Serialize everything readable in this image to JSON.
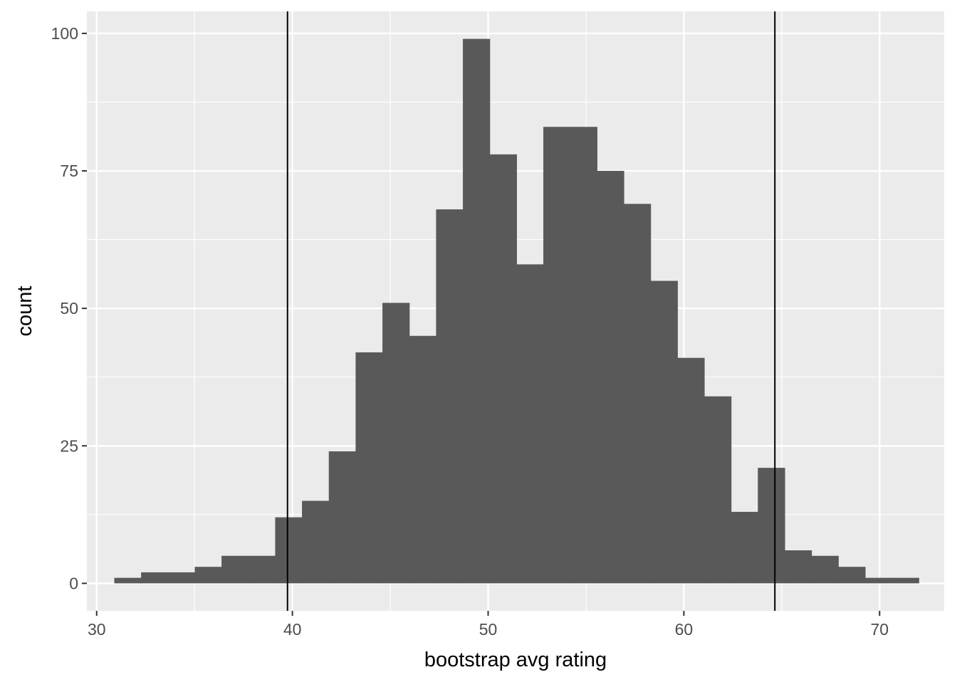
{
  "chart_data": {
    "type": "bar",
    "subtype": "histogram",
    "title": "",
    "xlabel": "bootstrap avg rating",
    "ylabel": "count",
    "xlim": [
      29.5,
      73.3
    ],
    "ylim": [
      -5,
      104
    ],
    "x_ticks": [
      30,
      40,
      50,
      60,
      70
    ],
    "x_tick_labels": [
      "30",
      "40",
      "50",
      "60",
      "70"
    ],
    "y_ticks": [
      0,
      25,
      50,
      75,
      100
    ],
    "y_tick_labels": [
      "0",
      "25",
      "50",
      "75",
      "100"
    ],
    "bins": [
      {
        "x0": 30.9,
        "x1": 32.27,
        "count": 1
      },
      {
        "x0": 32.27,
        "x1": 33.64,
        "count": 2
      },
      {
        "x0": 33.64,
        "x1": 35.01,
        "count": 2
      },
      {
        "x0": 35.01,
        "x1": 36.38,
        "count": 3
      },
      {
        "x0": 36.38,
        "x1": 37.75,
        "count": 5
      },
      {
        "x0": 37.75,
        "x1": 39.12,
        "count": 5
      },
      {
        "x0": 39.12,
        "x1": 40.49,
        "count": 12
      },
      {
        "x0": 40.49,
        "x1": 41.86,
        "count": 15
      },
      {
        "x0": 41.86,
        "x1": 43.23,
        "count": 24
      },
      {
        "x0": 43.23,
        "x1": 44.6,
        "count": 42
      },
      {
        "x0": 44.6,
        "x1": 45.97,
        "count": 51
      },
      {
        "x0": 45.97,
        "x1": 47.34,
        "count": 45
      },
      {
        "x0": 47.34,
        "x1": 48.71,
        "count": 68
      },
      {
        "x0": 48.71,
        "x1": 50.08,
        "count": 99
      },
      {
        "x0": 50.08,
        "x1": 51.45,
        "count": 78
      },
      {
        "x0": 51.45,
        "x1": 52.82,
        "count": 58
      },
      {
        "x0": 52.82,
        "x1": 54.19,
        "count": 83
      },
      {
        "x0": 54.19,
        "x1": 55.56,
        "count": 83
      },
      {
        "x0": 55.56,
        "x1": 56.93,
        "count": 75
      },
      {
        "x0": 56.93,
        "x1": 58.3,
        "count": 69
      },
      {
        "x0": 58.3,
        "x1": 59.67,
        "count": 55
      },
      {
        "x0": 59.67,
        "x1": 61.04,
        "count": 41
      },
      {
        "x0": 61.04,
        "x1": 62.41,
        "count": 34
      },
      {
        "x0": 62.41,
        "x1": 63.78,
        "count": 13
      },
      {
        "x0": 63.78,
        "x1": 65.15,
        "count": 21
      },
      {
        "x0": 65.15,
        "x1": 66.52,
        "count": 6
      },
      {
        "x0": 66.52,
        "x1": 67.89,
        "count": 5
      },
      {
        "x0": 67.89,
        "x1": 69.26,
        "count": 3
      },
      {
        "x0": 69.26,
        "x1": 70.63,
        "count": 1
      },
      {
        "x0": 70.63,
        "x1": 72.0,
        "count": 1
      }
    ],
    "vlines": [
      39.75,
      64.65
    ],
    "grid": true,
    "legend": "none",
    "colors": {
      "bar": "#595959",
      "panel": "#ebebeb",
      "grid": "#ffffff",
      "vline": "#000000"
    }
  }
}
